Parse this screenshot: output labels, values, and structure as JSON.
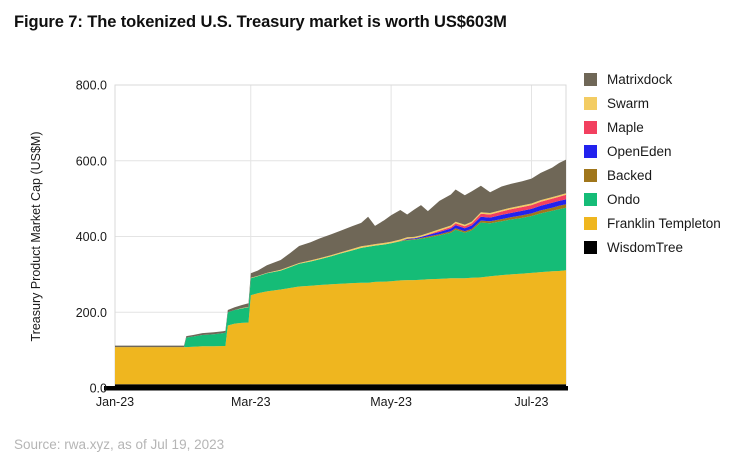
{
  "figure": {
    "title": "Figure 7: The tokenized U.S. Treasury market is worth US$603M",
    "source": "Source: rwa.xyz, as of Jul 19, 2023"
  },
  "chart_data": {
    "type": "area",
    "stacked": true,
    "title": "Figure 7: The tokenized U.S. Treasury market is worth US$603M",
    "xlabel": "",
    "ylabel": "Treasury Product Market Cap (US$M)",
    "unit": "US$M",
    "total_latest": 603,
    "ylim": [
      0,
      800
    ],
    "grid": "on",
    "legend_position": "right",
    "x_domain": [
      0,
      196
    ],
    "x_ticks": [
      {
        "label": "Jan-23",
        "day": 0
      },
      {
        "label": "Mar-23",
        "day": 59
      },
      {
        "label": "May-23",
        "day": 120
      },
      {
        "label": "Jul-23",
        "day": 181
      }
    ],
    "y_ticks": [
      {
        "label": "0.0",
        "value": 0
      },
      {
        "label": "200.0",
        "value": 200
      },
      {
        "label": "400.0",
        "value": 400
      },
      {
        "label": "600.0",
        "value": 600
      },
      {
        "label": "800.0",
        "value": 800
      }
    ],
    "x": [
      0,
      12,
      24,
      30,
      31,
      34,
      38,
      43,
      47,
      48,
      49,
      52,
      55,
      58,
      59,
      62,
      66,
      72,
      76,
      80,
      85,
      89,
      94,
      98,
      103,
      107,
      110,
      113,
      117,
      120,
      124,
      127,
      130,
      133,
      136,
      141,
      146,
      148,
      152,
      155,
      159,
      163,
      168,
      172,
      177,
      181,
      185,
      190,
      193,
      196
    ],
    "series": [
      {
        "name": "WisdomTree",
        "color": "#000000",
        "values": [
          10,
          10,
          10,
          10,
          10,
          10,
          10,
          10,
          10,
          10,
          10,
          10,
          10,
          10,
          10,
          10,
          10,
          10,
          10,
          10,
          10,
          10,
          10,
          10,
          10,
          10,
          10,
          10,
          10,
          10,
          10,
          10,
          10,
          10,
          10,
          10,
          10,
          10,
          10,
          10,
          10,
          10,
          10,
          10,
          10,
          10,
          10,
          10,
          10,
          10
        ]
      },
      {
        "name": "Franklin Templeton",
        "color": "#EFB61F",
        "values": [
          98,
          98,
          98,
          98,
          98,
          99,
          100,
          100,
          101,
          101,
          155,
          160,
          162,
          163,
          235,
          240,
          245,
          250,
          254,
          258,
          260,
          262,
          264,
          265,
          267,
          268,
          268,
          270,
          271,
          272,
          274,
          275,
          275,
          276,
          277,
          278,
          280,
          280,
          280,
          281,
          282,
          285,
          288,
          290,
          292,
          294,
          296,
          298,
          299,
          301
        ]
      },
      {
        "name": "Ondo",
        "color": "#15BC77",
        "values": [
          0,
          0,
          0,
          0,
          25,
          27,
          30,
          32,
          34,
          35,
          35,
          36,
          38,
          40,
          45,
          45,
          48,
          50,
          55,
          60,
          64,
          68,
          74,
          80,
          86,
          92,
          95,
          96,
          98,
          100,
          103,
          105,
          106,
          108,
          110,
          115,
          120,
          128,
          120,
          125,
          145,
          140,
          142,
          145,
          147,
          150,
          155,
          160,
          163,
          165
        ]
      },
      {
        "name": "Backed",
        "color": "#A0761B",
        "values": [
          0,
          0,
          0,
          0,
          0,
          0,
          0,
          0,
          0,
          0,
          0,
          0,
          0,
          0,
          0,
          0,
          0,
          0,
          0,
          0,
          0,
          0,
          0,
          0,
          0,
          0,
          0,
          0,
          0,
          0,
          1,
          2,
          2,
          2,
          3,
          3,
          4,
          4,
          4,
          4,
          5,
          5,
          6,
          6,
          7,
          7,
          8,
          8,
          9,
          9
        ]
      },
      {
        "name": "OpenEden",
        "color": "#2222EE",
        "values": [
          0,
          0,
          0,
          0,
          0,
          0,
          0,
          0,
          0,
          0,
          0,
          0,
          0,
          0,
          0,
          0,
          0,
          0,
          0,
          0,
          0,
          0,
          0,
          0,
          0,
          0,
          0,
          0,
          0,
          0,
          0,
          2,
          2,
          3,
          4,
          6,
          7,
          8,
          8,
          9,
          10,
          10,
          11,
          11,
          12,
          12,
          12,
          13,
          13,
          13
        ]
      },
      {
        "name": "Maple",
        "color": "#F2405F",
        "values": [
          0,
          0,
          0,
          0,
          0,
          0,
          0,
          0,
          0,
          0,
          0,
          0,
          0,
          0,
          0,
          0,
          0,
          0,
          0,
          0,
          0,
          0,
          0,
          0,
          0,
          0,
          0,
          0,
          0,
          0,
          0,
          0,
          0,
          0,
          1,
          3,
          4,
          5,
          5,
          6,
          8,
          8,
          9,
          10,
          10,
          10,
          11,
          11,
          11,
          12
        ]
      },
      {
        "name": "Swarm",
        "color": "#F3CC63",
        "values": [
          0,
          0,
          0,
          0,
          0,
          0,
          0,
          0,
          0,
          0,
          0,
          0,
          1,
          1,
          1,
          1,
          1,
          2,
          2,
          2,
          3,
          3,
          3,
          3,
          4,
          4,
          4,
          4,
          4,
          4,
          4,
          4,
          4,
          4,
          4,
          4,
          4,
          4,
          4,
          4,
          4,
          4,
          4,
          4,
          4,
          4,
          4,
          4,
          4,
          4
        ]
      },
      {
        "name": "Matrixdock",
        "color": "#6F6757",
        "values": [
          4,
          4,
          4,
          4,
          4,
          4,
          5,
          5,
          5,
          5,
          6,
          7,
          8,
          10,
          12,
          14,
          20,
          26,
          35,
          45,
          48,
          52,
          55,
          57,
          60,
          62,
          75,
          48,
          60,
          70,
          78,
          60,
          72,
          80,
          58,
          75,
          82,
          85,
          78,
          80,
          70,
          55,
          62,
          63,
          64,
          66,
          72,
          78,
          85,
          89
        ]
      }
    ],
    "legend": [
      {
        "name": "Matrixdock",
        "color": "#6F6757"
      },
      {
        "name": "Swarm",
        "color": "#F3CC63"
      },
      {
        "name": "Maple",
        "color": "#F2405F"
      },
      {
        "name": "OpenEden",
        "color": "#2222EE"
      },
      {
        "name": "Backed",
        "color": "#A0761B"
      },
      {
        "name": "Ondo",
        "color": "#15BC77"
      },
      {
        "name": "Franklin Templeton",
        "color": "#EFB61F"
      },
      {
        "name": "WisdomTree",
        "color": "#000000"
      }
    ]
  }
}
